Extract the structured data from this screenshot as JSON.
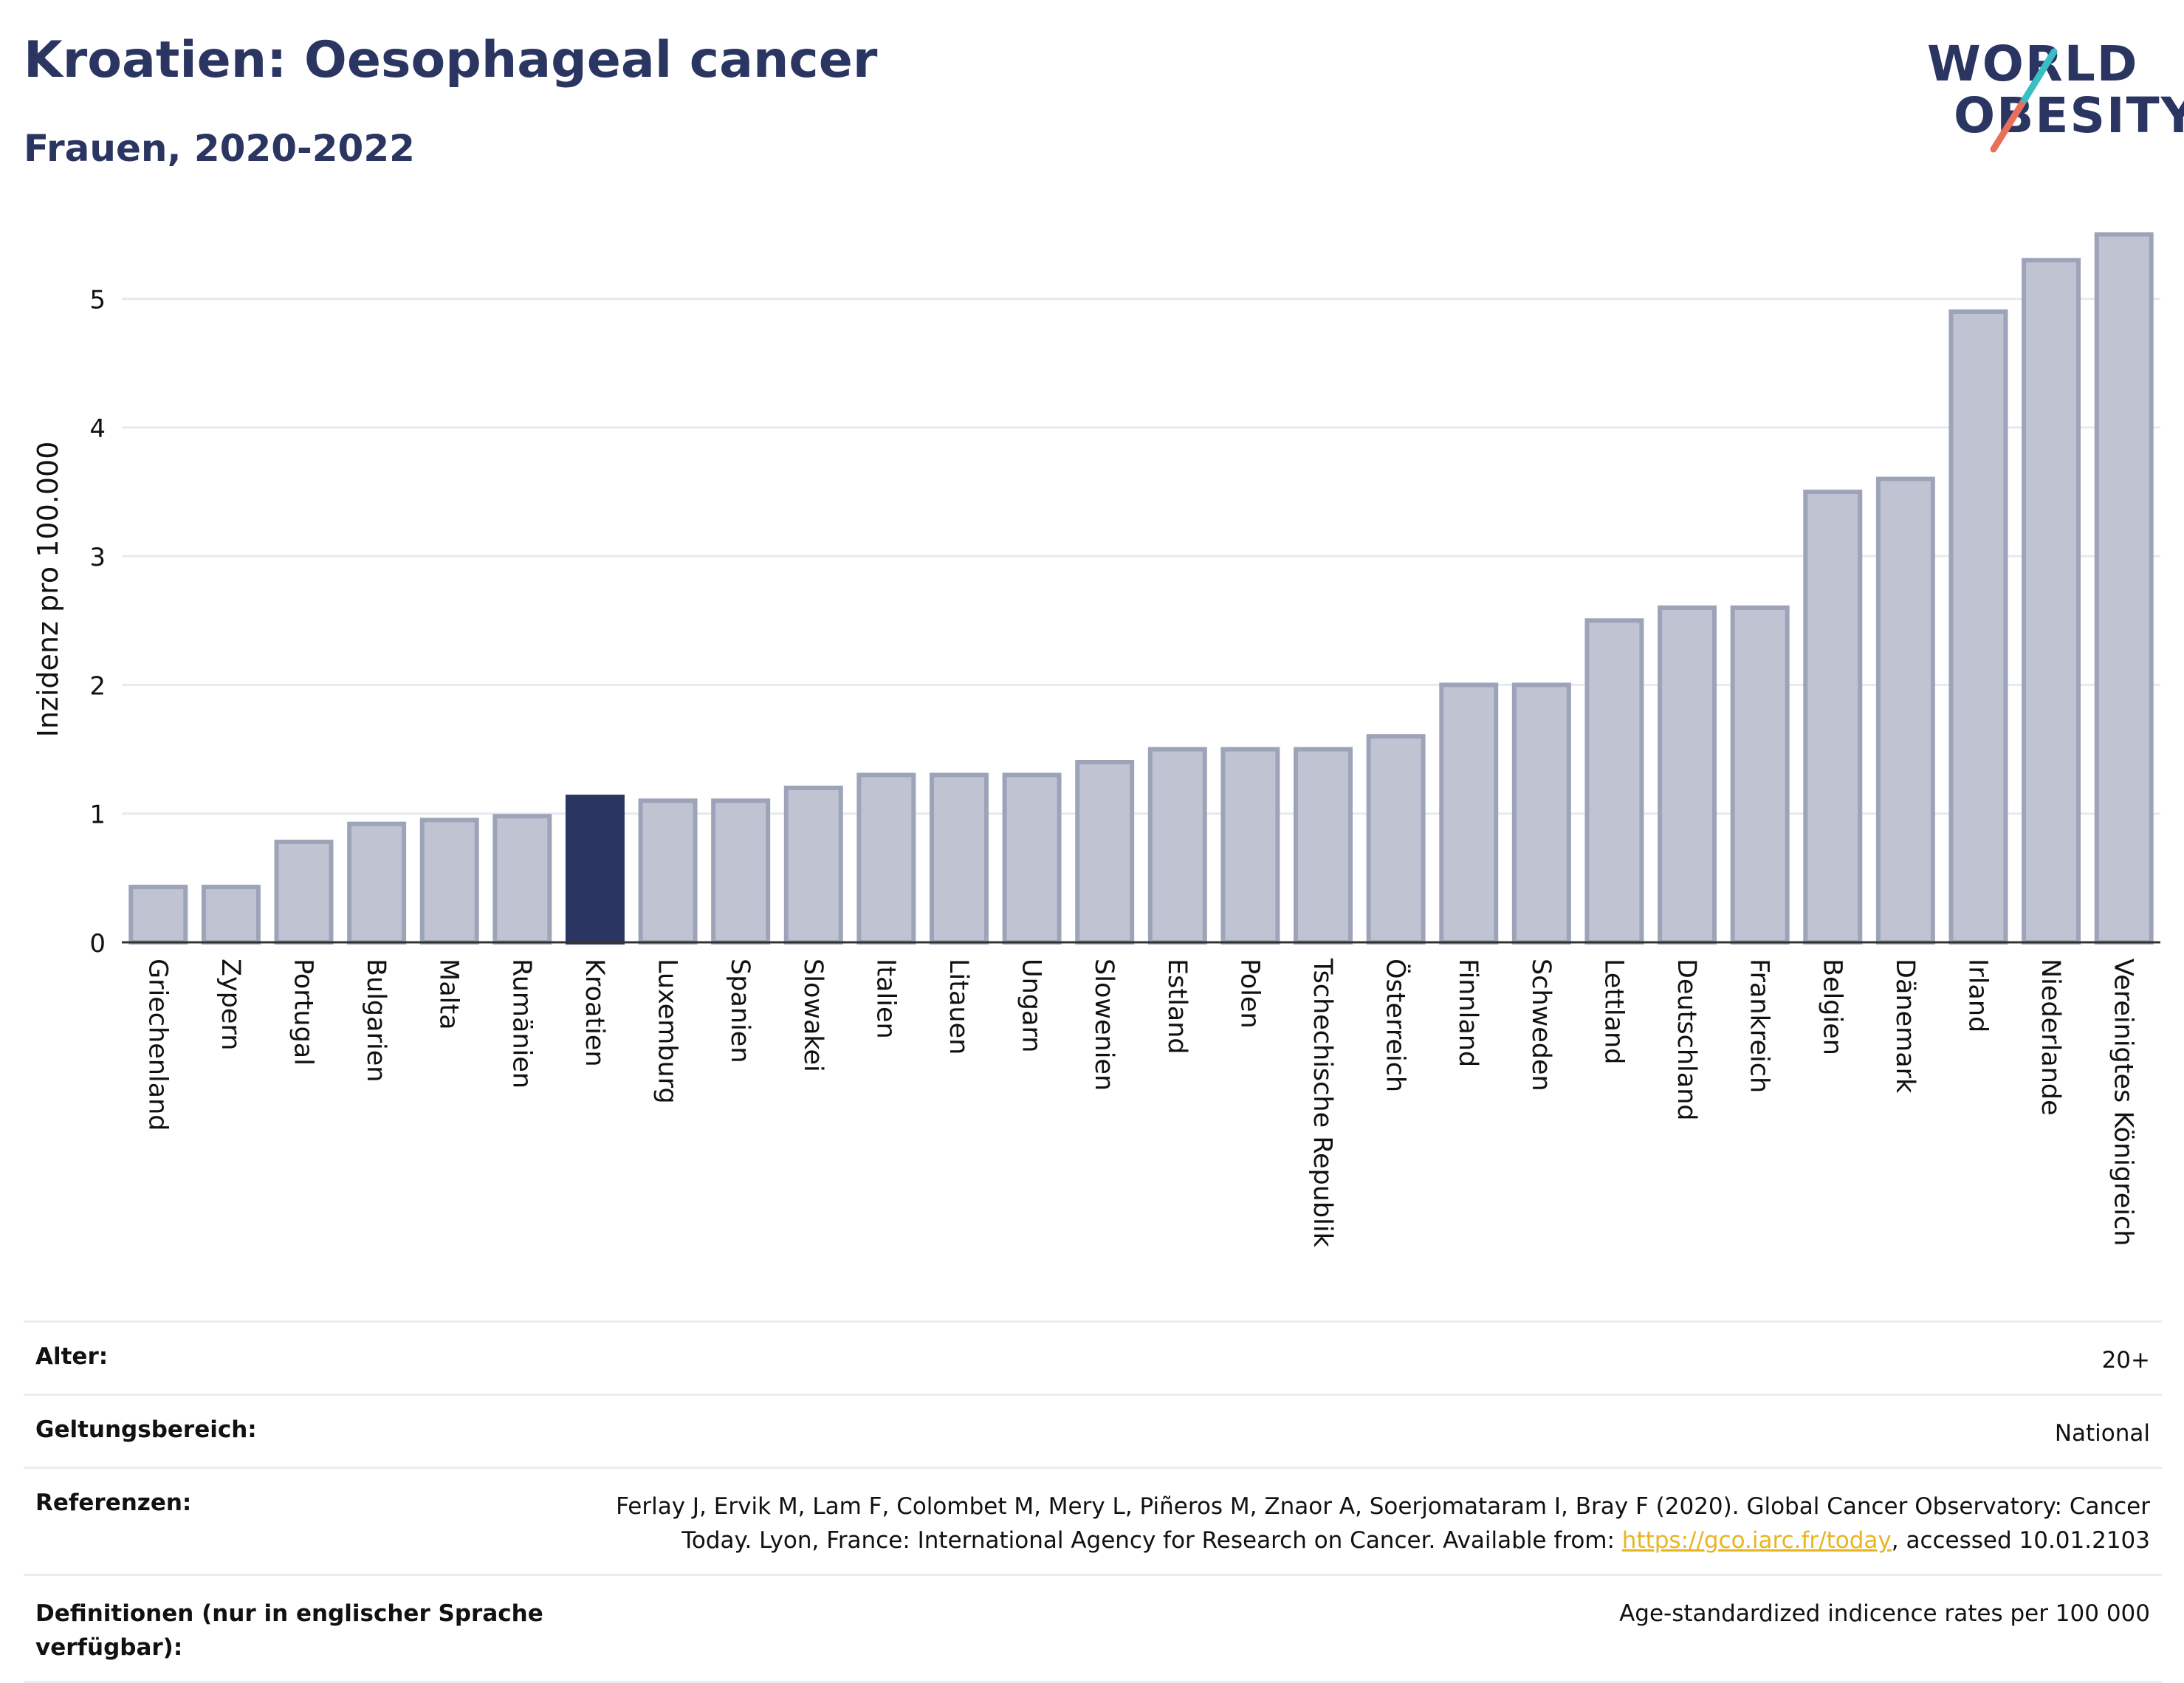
{
  "header": {
    "title": "Kroatien: Oesophageal cancer",
    "subtitle": "Frauen, 2020-2022",
    "logo_line1": "WORLD",
    "logo_line2": "OBESITY"
  },
  "colors": {
    "highlight_bar": "#2a3561",
    "bar_fill": "#c0c4d2",
    "bar_stroke": "#9da3b8",
    "text": "#2a3561",
    "link": "#e8b520",
    "logo_teal": "#3bbdc4",
    "logo_coral": "#e8705b"
  },
  "chart_data": {
    "type": "bar",
    "ylabel": "Inzidenz pro 100.000",
    "ylim": [
      0,
      5.6
    ],
    "yticks": [
      0,
      1,
      2,
      3,
      4,
      5
    ],
    "highlight": "Kroatien",
    "grid": true,
    "categories": [
      "Griechenland",
      "Zypern",
      "Portugal",
      "Bulgarien",
      "Malta",
      "Rumänien",
      "Kroatien",
      "Luxemburg",
      "Spanien",
      "Slowakei",
      "Italien",
      "Litauen",
      "Ungarn",
      "Slowenien",
      "Estland",
      "Polen",
      "Tschechische Republik",
      "Österreich",
      "Finnland",
      "Schweden",
      "Lettland",
      "Deutschland",
      "Frankreich",
      "Belgien",
      "Dänemark",
      "Irland",
      "Niederlande",
      "Vereinigtes Königreich"
    ],
    "values": [
      0.43,
      0.43,
      0.78,
      0.92,
      0.95,
      0.98,
      1.13,
      1.1,
      1.1,
      1.2,
      1.3,
      1.3,
      1.3,
      1.4,
      1.5,
      1.5,
      1.5,
      1.6,
      2.0,
      2.0,
      2.5,
      2.6,
      2.6,
      3.5,
      3.6,
      4.9,
      5.3,
      5.5
    ]
  },
  "meta": {
    "rows": [
      {
        "label": "Alter:",
        "value": "20+"
      },
      {
        "label": "Geltungsbereich:",
        "value": "National"
      }
    ],
    "references": {
      "label": "Referenzen:",
      "line1": "Ferlay J, Ervik M, Lam F, Colombet M, Mery L, Piñeros M, Znaor A, Soerjomataram I, Bray F (2020). Global Cancer Observatory: Cancer",
      "line2_pre": "Today. Lyon, France: International Agency for Research on Cancer. Available from: ",
      "link": "https://gco.iarc.fr/today",
      "line2_post": ", accessed 10.01.2103"
    },
    "definitions": {
      "label": "Definitionen (nur in englischer Sprache verfügbar):",
      "value": "Age-standardized indicence rates per 100 000"
    }
  }
}
